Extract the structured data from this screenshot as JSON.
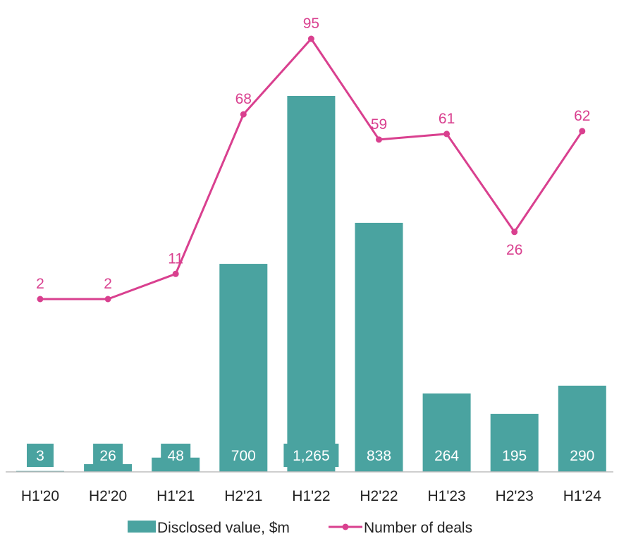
{
  "chart_data": {
    "type": "bar",
    "categories": [
      "H1'20",
      "H2'20",
      "H1'21",
      "H2'21",
      "H1'22",
      "H2'22",
      "H1'23",
      "H2'23",
      "H1'24"
    ],
    "series": [
      {
        "name": "Disclosed value, $m",
        "type": "bar",
        "values": [
          3,
          26,
          48,
          700,
          1265,
          838,
          264,
          195,
          290
        ],
        "labels": [
          "3",
          "26",
          "48",
          "700",
          "1,265",
          "838",
          "264",
          "195",
          "290"
        ],
        "color": "#4aa3a0"
      },
      {
        "name": "Number of deals",
        "type": "line",
        "values": [
          2,
          2,
          11,
          68,
          95,
          59,
          61,
          26,
          62
        ],
        "labels": [
          "2",
          "2",
          "11",
          "68",
          "95",
          "59",
          "61",
          "26",
          "62"
        ],
        "color": "#d9408f"
      }
    ],
    "axes": {
      "bar_value_range": [
        0,
        1265
      ],
      "line_value_range": [
        0,
        95
      ]
    },
    "grid": false,
    "legend_position": "bottom"
  }
}
